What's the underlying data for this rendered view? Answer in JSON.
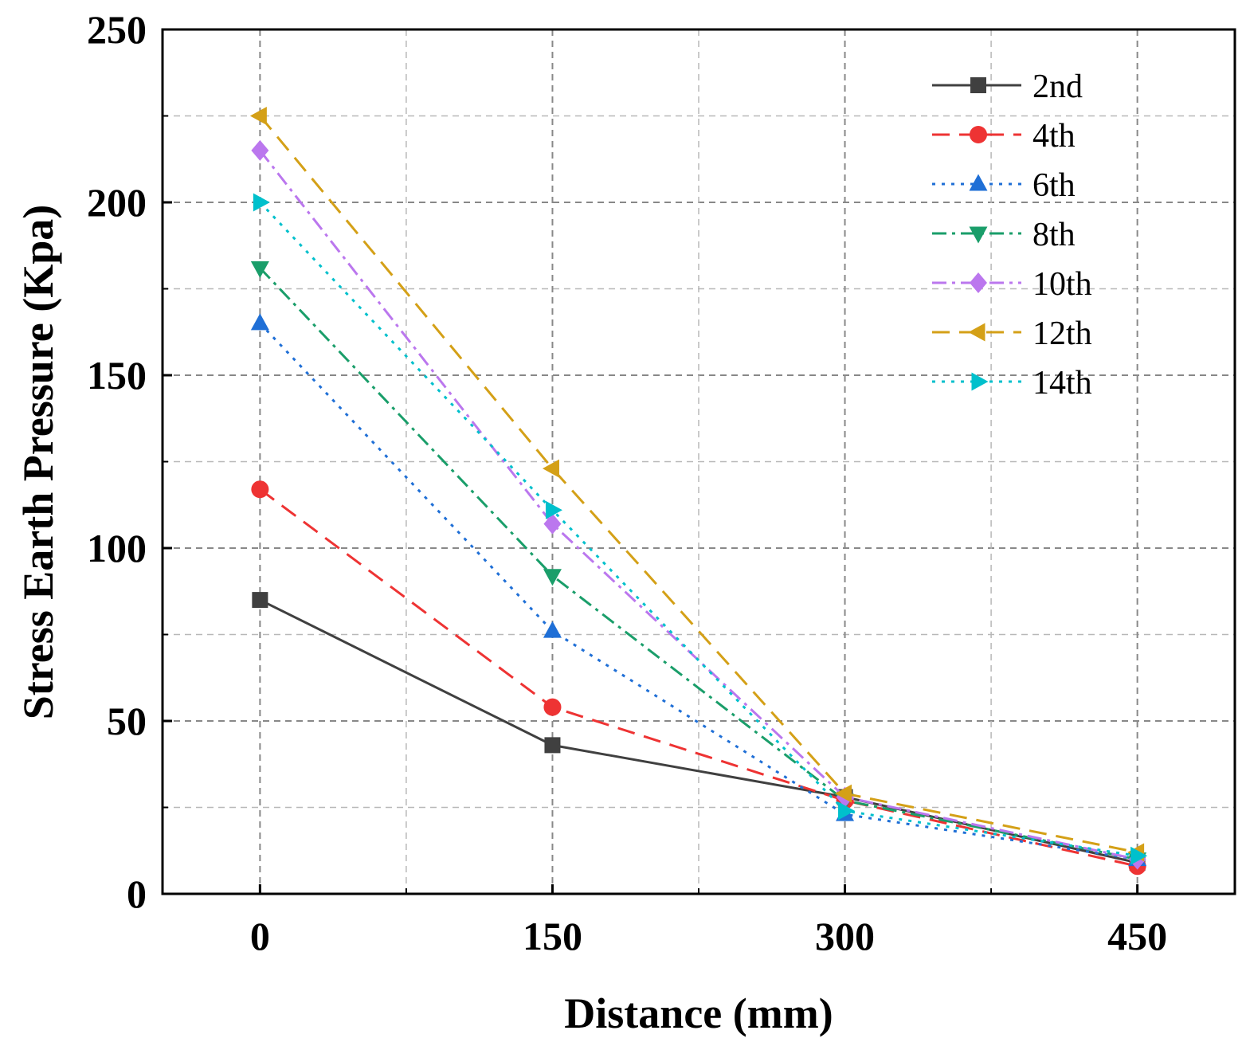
{
  "chart_data": {
    "type": "line",
    "title": "",
    "xlabel": "Distance (mm)",
    "ylabel": "Stress Earth Pressure (Kpa)",
    "x": [
      0,
      150,
      300,
      450
    ],
    "xticks": [
      0,
      150,
      300,
      450
    ],
    "xlim": [
      -50,
      500
    ],
    "yticks": [
      0,
      50,
      100,
      150,
      200,
      250
    ],
    "ylim": [
      0,
      250
    ],
    "grid": true,
    "legend_position": "top-right",
    "series": [
      {
        "name": "2nd",
        "values": [
          85,
          43,
          28,
          9
        ],
        "color": "#404040",
        "marker": "square",
        "dash": "solid"
      },
      {
        "name": "4th",
        "values": [
          117,
          54,
          27,
          8
        ],
        "color": "#ee3333",
        "marker": "circle",
        "dash": "dash"
      },
      {
        "name": "6th",
        "values": [
          165,
          76,
          23,
          10
        ],
        "color": "#1f6fd6",
        "marker": "triangle-up",
        "dash": "dot"
      },
      {
        "name": "8th",
        "values": [
          181,
          92,
          27,
          10
        ],
        "color": "#1a9e6a",
        "marker": "triangle-down",
        "dash": "dashdot"
      },
      {
        "name": "10th",
        "values": [
          215,
          107,
          28,
          10
        ],
        "color": "#bb77ee",
        "marker": "diamond",
        "dash": "dashdot"
      },
      {
        "name": "12th",
        "values": [
          225,
          123,
          29,
          12
        ],
        "color": "#d4a017",
        "marker": "triangle-left",
        "dash": "dash"
      },
      {
        "name": "14th",
        "values": [
          200,
          111,
          24,
          11
        ],
        "color": "#00c0cc",
        "marker": "triangle-right",
        "dash": "dot"
      }
    ]
  }
}
